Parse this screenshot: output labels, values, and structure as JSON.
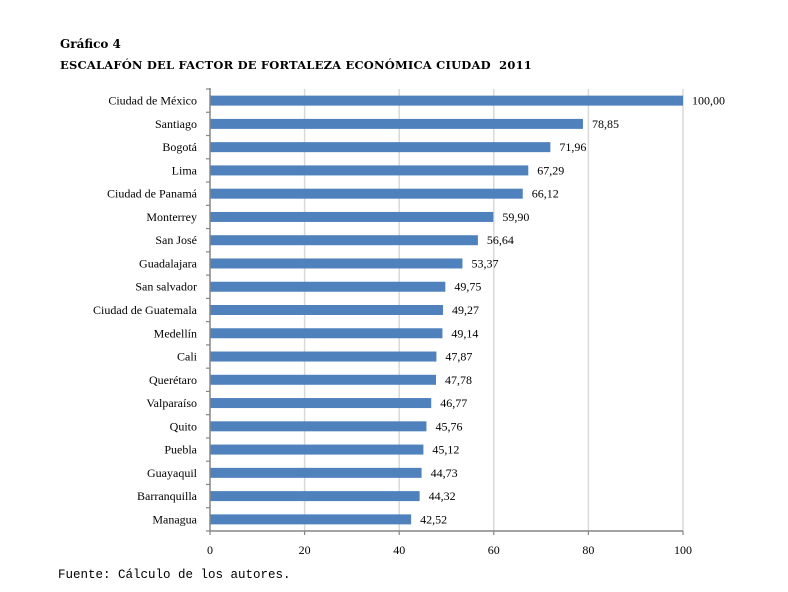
{
  "caption": {
    "number": "Gráfico 4",
    "title": "ESCALAFÓN DEL FACTOR DE FORTALEZA ECONÓMICA CIUDAD  2011"
  },
  "source": "Fuente: Cálculo de los autores.",
  "chart_data": {
    "type": "bar",
    "orientation": "horizontal",
    "title": "ESCALAFÓN DEL FACTOR DE FORTALEZA ECONÓMICA CIUDAD  2011",
    "xlabel": "",
    "ylabel": "",
    "categories": [
      "Ciudad de México",
      "Santiago",
      "Bogotá",
      "Lima",
      "Ciudad de Panamá",
      "Monterrey",
      "San José",
      "Guadalajara",
      "San salvador",
      "Ciudad de Guatemala",
      "Medellín",
      "Cali",
      "Querétaro",
      "Valparaíso",
      "Quito",
      "Puebla",
      "Guayaquil",
      "Barranquilla",
      "Managua"
    ],
    "values": [
      100.0,
      78.85,
      71.96,
      67.29,
      66.12,
      59.9,
      56.64,
      53.37,
      49.75,
      49.27,
      49.14,
      47.87,
      47.78,
      46.77,
      45.76,
      45.12,
      44.73,
      44.32,
      42.52
    ],
    "value_labels": [
      "100,00",
      "78,85",
      "71,96",
      "67,29",
      "66,12",
      "59,90",
      "56,64",
      "53,37",
      "49,75",
      "49,27",
      "49,14",
      "47,87",
      "47,78",
      "46,77",
      "45,76",
      "45,12",
      "44,73",
      "44,32",
      "42,52"
    ],
    "xlim": [
      0,
      100
    ],
    "xticks": [
      0,
      20,
      40,
      60,
      80,
      100
    ],
    "xtick_labels": [
      "0",
      "20",
      "40",
      "60",
      "80",
      "100"
    ],
    "grid": true,
    "legend": "none",
    "bar_color": "#4f81bd",
    "grid_color": "#d9d9d9",
    "axis_color": "#868686"
  }
}
